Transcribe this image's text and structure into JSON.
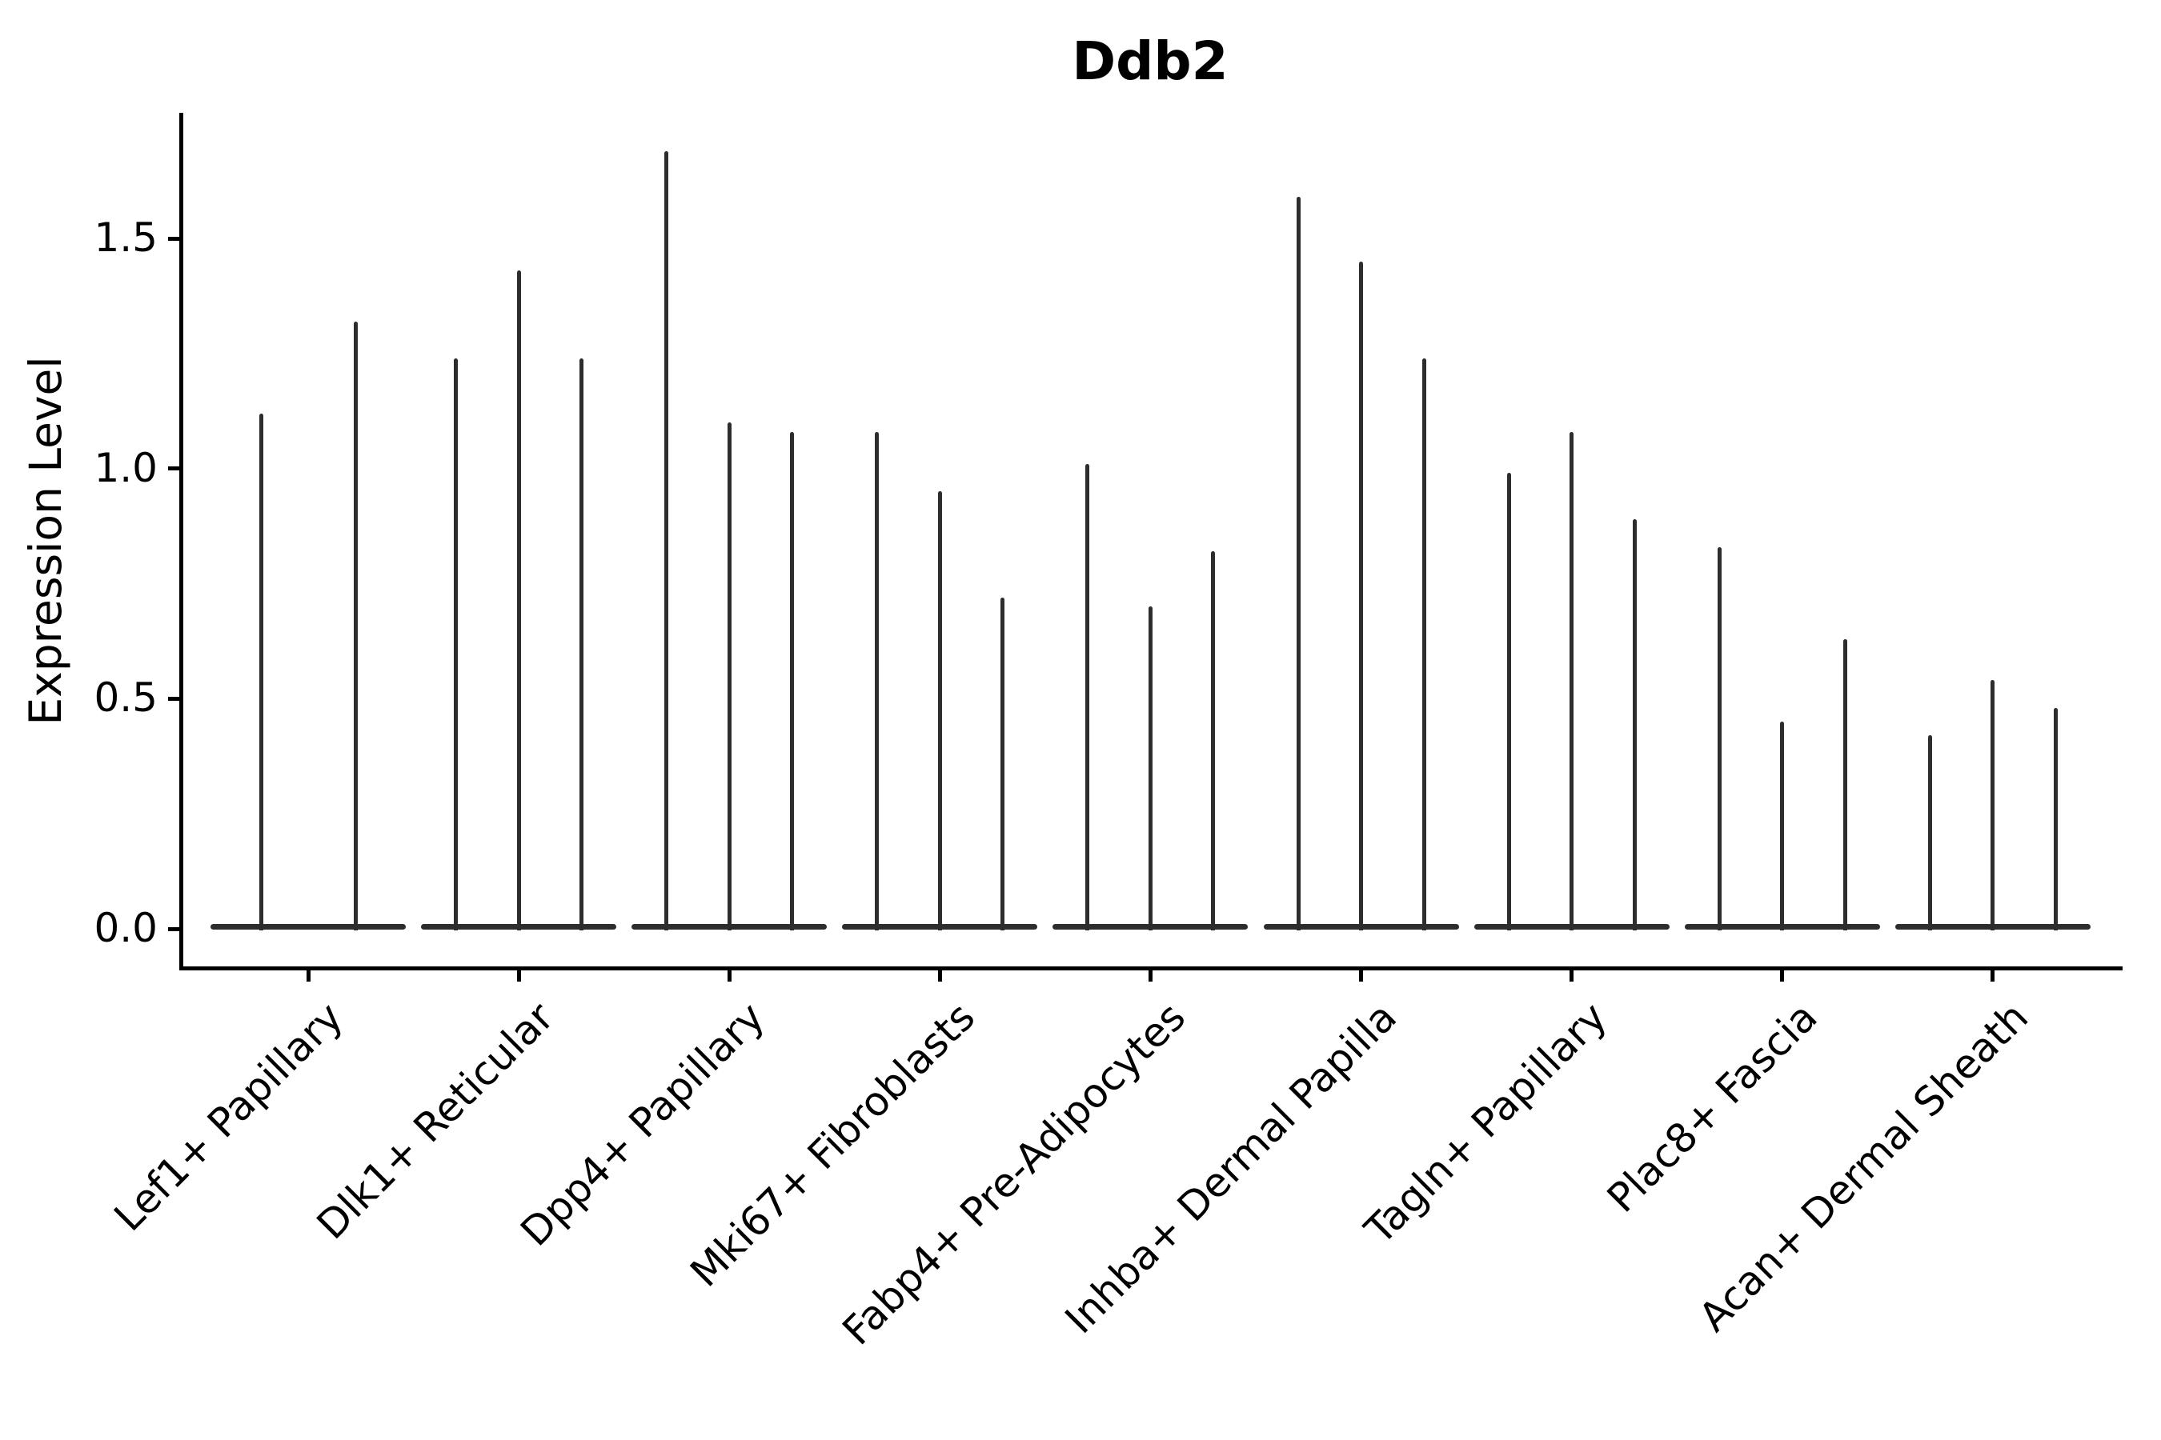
{
  "title": "Ddb2",
  "ylabel": "Expression Level",
  "chart_data": {
    "type": "violin",
    "title": "Ddb2",
    "xlabel": "",
    "ylabel": "Expression Level",
    "ylim": [
      -0.08,
      1.78
    ],
    "yticks": [
      0.0,
      0.5,
      1.0,
      1.5
    ],
    "grid": false,
    "legend": "none",
    "violin_style": "narrow spikes with wide flat base at zero (sparse expression)",
    "categories": [
      "Lef1+ Papillary",
      "Dlk1+ Reticular",
      "Dpp4+ Papillary",
      "Mki67+ Fibroblasts",
      "Fabp4+ Pre-Adipocytes",
      "Inhba+ Dermal Papilla",
      "Tagln+ Papillary",
      "Plac8+ Fascia",
      "Acan+ Dermal Sheath"
    ],
    "groups": [
      {
        "category": "Lef1+ Papillary",
        "violin_maxima": [
          1.12,
          1.32
        ]
      },
      {
        "category": "Dlk1+ Reticular",
        "violin_maxima": [
          1.24,
          1.43,
          1.24
        ]
      },
      {
        "category": "Dpp4+ Papillary",
        "violin_maxima": [
          1.69,
          1.1,
          1.08
        ]
      },
      {
        "category": "Mki67+ Fibroblasts",
        "violin_maxima": [
          1.08,
          0.95,
          0.72
        ]
      },
      {
        "category": "Fabp4+ Pre-Adipocytes",
        "violin_maxima": [
          1.01,
          0.7,
          0.82
        ]
      },
      {
        "category": "Inhba+ Dermal Papilla",
        "violin_maxima": [
          1.59,
          1.45,
          1.24
        ]
      },
      {
        "category": "Tagln+ Papillary",
        "violin_maxima": [
          0.99,
          1.08,
          0.89
        ]
      },
      {
        "category": "Plac8+ Fascia",
        "violin_maxima": [
          0.83,
          0.45,
          0.63
        ]
      },
      {
        "category": "Acan+ Dermal Sheath",
        "violin_maxima": [
          0.42,
          0.54,
          0.48
        ]
      }
    ]
  }
}
